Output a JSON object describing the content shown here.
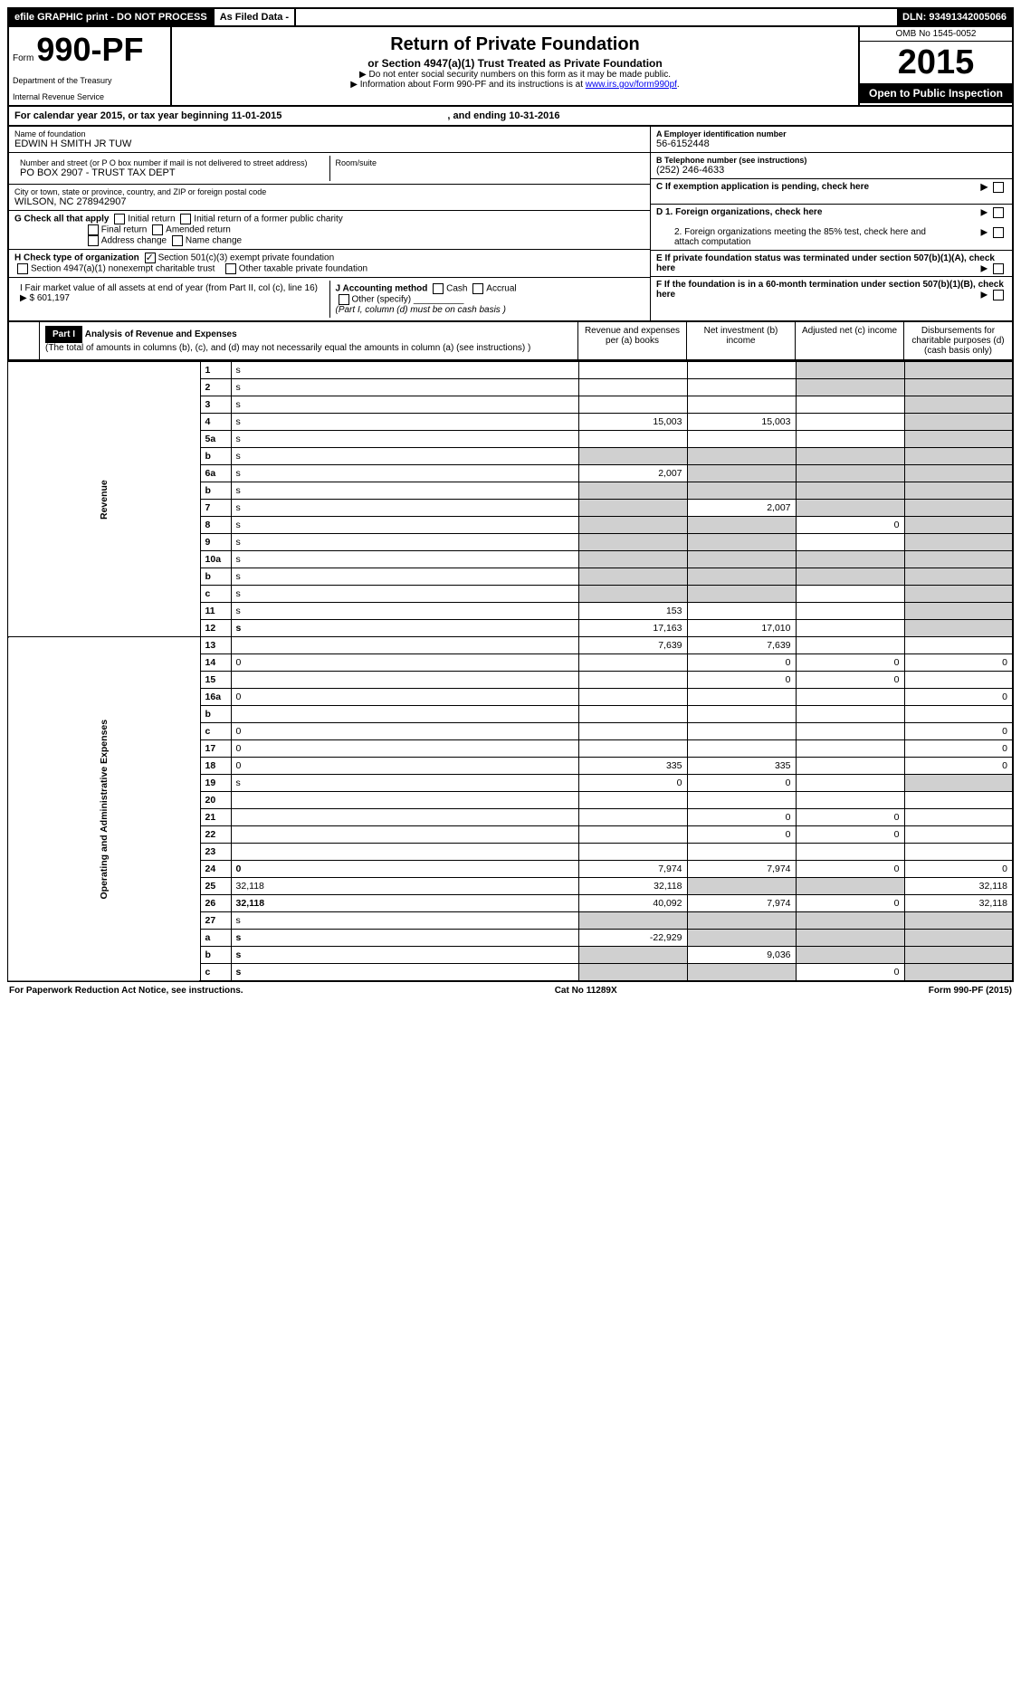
{
  "topbar": {
    "efile": "efile GRAPHIC print - DO NOT PROCESS",
    "asfiled": "As Filed Data -",
    "dln_label": "DLN:",
    "dln": "93491342005066"
  },
  "header": {
    "form_prefix": "Form",
    "form_num": "990-PF",
    "dept1": "Department of the Treasury",
    "dept2": "Internal Revenue Service",
    "title": "Return of Private Foundation",
    "subtitle": "or Section 4947(a)(1) Trust Treated as Private Foundation",
    "note1": "▶ Do not enter social security numbers on this form as it may be made public.",
    "note2_pre": "▶ Information about Form 990-PF and its instructions is at ",
    "note2_link": "www.irs.gov/form990pf",
    "omb": "OMB No 1545-0052",
    "year": "2015",
    "open": "Open to Public Inspection"
  },
  "cal_year": {
    "prefix": "For calendar year 2015, or tax year beginning ",
    "begin": "11-01-2015",
    "mid": ", and ending ",
    "end": "10-31-2016"
  },
  "info": {
    "name_label": "Name of foundation",
    "name": "EDWIN H SMITH JR TUW",
    "addr_label": "Number and street (or P O box number if mail is not delivered to street address)",
    "room_label": "Room/suite",
    "addr": "PO BOX 2907 - TRUST TAX DEPT",
    "city_label": "City or town, state or province, country, and ZIP or foreign postal code",
    "city": "WILSON, NC 278942907",
    "ein_label": "A Employer identification number",
    "ein": "56-6152448",
    "tel_label": "B Telephone number (see instructions)",
    "tel": "(252) 246-4633",
    "c_label": "C If exemption application is pending, check here",
    "g_label": "G Check all that apply",
    "g_opts": [
      "Initial return",
      "Initial return of a former public charity",
      "Final return",
      "Amended return",
      "Address change",
      "Name change"
    ],
    "h_label": "H Check type of organization",
    "h_opt1": "Section 501(c)(3) exempt private foundation",
    "h_opt2": "Section 4947(a)(1) nonexempt charitable trust",
    "h_opt3": "Other taxable private foundation",
    "i_label": "I Fair market value of all assets at end of year (from Part II, col (c), line 16) ▶ $",
    "i_val": "601,197",
    "j_label": "J Accounting method",
    "j_cash": "Cash",
    "j_accrual": "Accrual",
    "j_other": "Other (specify)",
    "j_note": "(Part I, column (d) must be on cash basis )",
    "d1": "D 1. Foreign organizations, check here",
    "d2": "2. Foreign organizations meeting the 85% test, check here and attach computation",
    "e": "E If private foundation status was terminated under section 507(b)(1)(A), check here",
    "f": "F If the foundation is in a 60-month termination under section 507(b)(1)(B), check here"
  },
  "part1": {
    "tag": "Part I",
    "title": "Analysis of Revenue and Expenses",
    "note": "(The total of amounts in columns (b), (c), and (d) may not necessarily equal the amounts in column (a) (see instructions) )",
    "cols": {
      "a": "Revenue and expenses per (a) books",
      "b": "Net investment (b) income",
      "c": "Adjusted net (c) income",
      "d": "Disbursements for charitable purposes (d) (cash basis only)"
    }
  },
  "side": {
    "rev": "Revenue",
    "exp": "Operating and Administrative Expenses"
  },
  "rows": [
    {
      "n": "1",
      "d": "s",
      "a": "",
      "b": "",
      "c": "s"
    },
    {
      "n": "2",
      "d": "s",
      "a": "",
      "b": "",
      "c": "s"
    },
    {
      "n": "3",
      "d": "s",
      "a": "",
      "b": "",
      "c": ""
    },
    {
      "n": "4",
      "d": "s",
      "a": "15,003",
      "b": "15,003",
      "c": ""
    },
    {
      "n": "5a",
      "d": "s",
      "a": "",
      "b": "",
      "c": ""
    },
    {
      "n": "b",
      "d": "s",
      "a": "s",
      "b": "s",
      "c": "s"
    },
    {
      "n": "6a",
      "d": "s",
      "a": "2,007",
      "b": "s",
      "c": "s"
    },
    {
      "n": "b",
      "d": "s",
      "a": "s",
      "b": "s",
      "c": "s"
    },
    {
      "n": "7",
      "d": "s",
      "a": "s",
      "b": "2,007",
      "c": "s"
    },
    {
      "n": "8",
      "d": "s",
      "a": "s",
      "b": "s",
      "c": "0"
    },
    {
      "n": "9",
      "d": "s",
      "a": "s",
      "b": "s",
      "c": ""
    },
    {
      "n": "10a",
      "d": "s",
      "a": "s",
      "b": "s",
      "c": "s"
    },
    {
      "n": "b",
      "d": "s",
      "a": "s",
      "b": "s",
      "c": "s"
    },
    {
      "n": "c",
      "d": "s",
      "a": "s",
      "b": "s",
      "c": ""
    },
    {
      "n": "11",
      "d": "s",
      "a": "153",
      "b": "",
      "c": ""
    },
    {
      "n": "12",
      "d": "s",
      "a": "17,163",
      "b": "17,010",
      "c": "",
      "bold": true
    },
    {
      "n": "13",
      "d": "",
      "a": "7,639",
      "b": "7,639",
      "c": ""
    },
    {
      "n": "14",
      "d": "0",
      "a": "",
      "b": "0",
      "c": "0"
    },
    {
      "n": "15",
      "d": "",
      "a": "",
      "b": "0",
      "c": "0"
    },
    {
      "n": "16a",
      "d": "0",
      "a": "",
      "b": "",
      "c": ""
    },
    {
      "n": "b",
      "d": "",
      "a": "",
      "b": "",
      "c": ""
    },
    {
      "n": "c",
      "d": "0",
      "a": "",
      "b": "",
      "c": ""
    },
    {
      "n": "17",
      "d": "0",
      "a": "",
      "b": "",
      "c": ""
    },
    {
      "n": "18",
      "d": "0",
      "a": "335",
      "b": "335",
      "c": ""
    },
    {
      "n": "19",
      "d": "s",
      "a": "0",
      "b": "0",
      "c": ""
    },
    {
      "n": "20",
      "d": "",
      "a": "",
      "b": "",
      "c": ""
    },
    {
      "n": "21",
      "d": "",
      "a": "",
      "b": "0",
      "c": "0"
    },
    {
      "n": "22",
      "d": "",
      "a": "",
      "b": "0",
      "c": "0"
    },
    {
      "n": "23",
      "d": "",
      "a": "",
      "b": "",
      "c": ""
    },
    {
      "n": "24",
      "d": "0",
      "a": "7,974",
      "b": "7,974",
      "c": "0",
      "bold": true
    },
    {
      "n": "25",
      "d": "32,118",
      "a": "32,118",
      "b": "s",
      "c": "s"
    },
    {
      "n": "26",
      "d": "32,118",
      "a": "40,092",
      "b": "7,974",
      "c": "0",
      "bold": true
    },
    {
      "n": "27",
      "d": "s",
      "a": "s",
      "b": "s",
      "c": "s"
    },
    {
      "n": "a",
      "d": "s",
      "a": "-22,929",
      "b": "s",
      "c": "s",
      "bold": true
    },
    {
      "n": "b",
      "d": "s",
      "a": "s",
      "b": "9,036",
      "c": "s",
      "bold": true
    },
    {
      "n": "c",
      "d": "s",
      "a": "s",
      "b": "s",
      "c": "0",
      "bold": true
    }
  ],
  "footer": {
    "left": "For Paperwork Reduction Act Notice, see instructions.",
    "mid": "Cat No 11289X",
    "right": "Form 990-PF (2015)"
  }
}
